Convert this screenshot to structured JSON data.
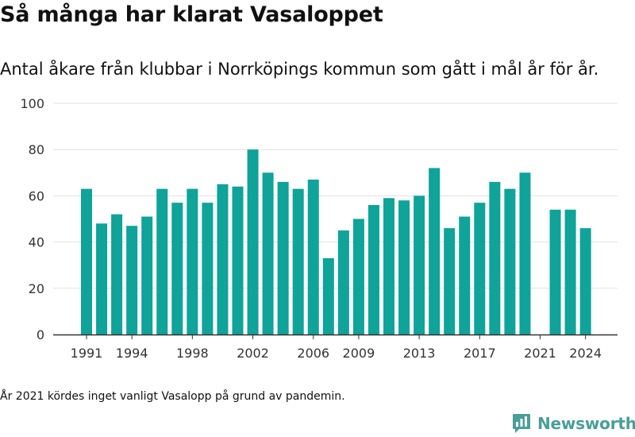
{
  "title": "Så många har klarat Vasaloppet",
  "subtitle": "Antal åkare från klubbar i Norrköpings kommun som gått i mål år för år.",
  "footnote": "År 2021 kördes inget vanligt Vasalopp på grund av pandemin.",
  "brand": {
    "name": "Newsworthy",
    "icon": "newsworthy-logo-icon",
    "color": "#4a9e98"
  },
  "colors": {
    "bar": "#0fa399",
    "grid": "#e1e1e1",
    "axis": "#333333"
  },
  "chart_data": {
    "type": "bar",
    "x": [
      1991,
      1992,
      1993,
      1994,
      1995,
      1996,
      1997,
      1998,
      1999,
      2000,
      2001,
      2002,
      2003,
      2004,
      2005,
      2006,
      2007,
      2008,
      2009,
      2010,
      2011,
      2012,
      2013,
      2014,
      2015,
      2016,
      2017,
      2018,
      2019,
      2020,
      2021,
      2022,
      2023,
      2024
    ],
    "values": [
      63,
      48,
      52,
      47,
      51,
      63,
      57,
      63,
      57,
      65,
      64,
      80,
      70,
      66,
      63,
      67,
      33,
      45,
      50,
      56,
      59,
      58,
      60,
      72,
      46,
      51,
      57,
      66,
      63,
      70,
      null,
      54,
      54,
      46
    ],
    "x_tick_labels": [
      "1991",
      "1994",
      "1998",
      "2002",
      "2006",
      "2009",
      "2013",
      "2017",
      "2021",
      "2024"
    ],
    "y_ticks": [
      0,
      20,
      40,
      60,
      80,
      100
    ],
    "ylim": [
      0,
      100
    ],
    "grid": true,
    "legend": "none"
  }
}
